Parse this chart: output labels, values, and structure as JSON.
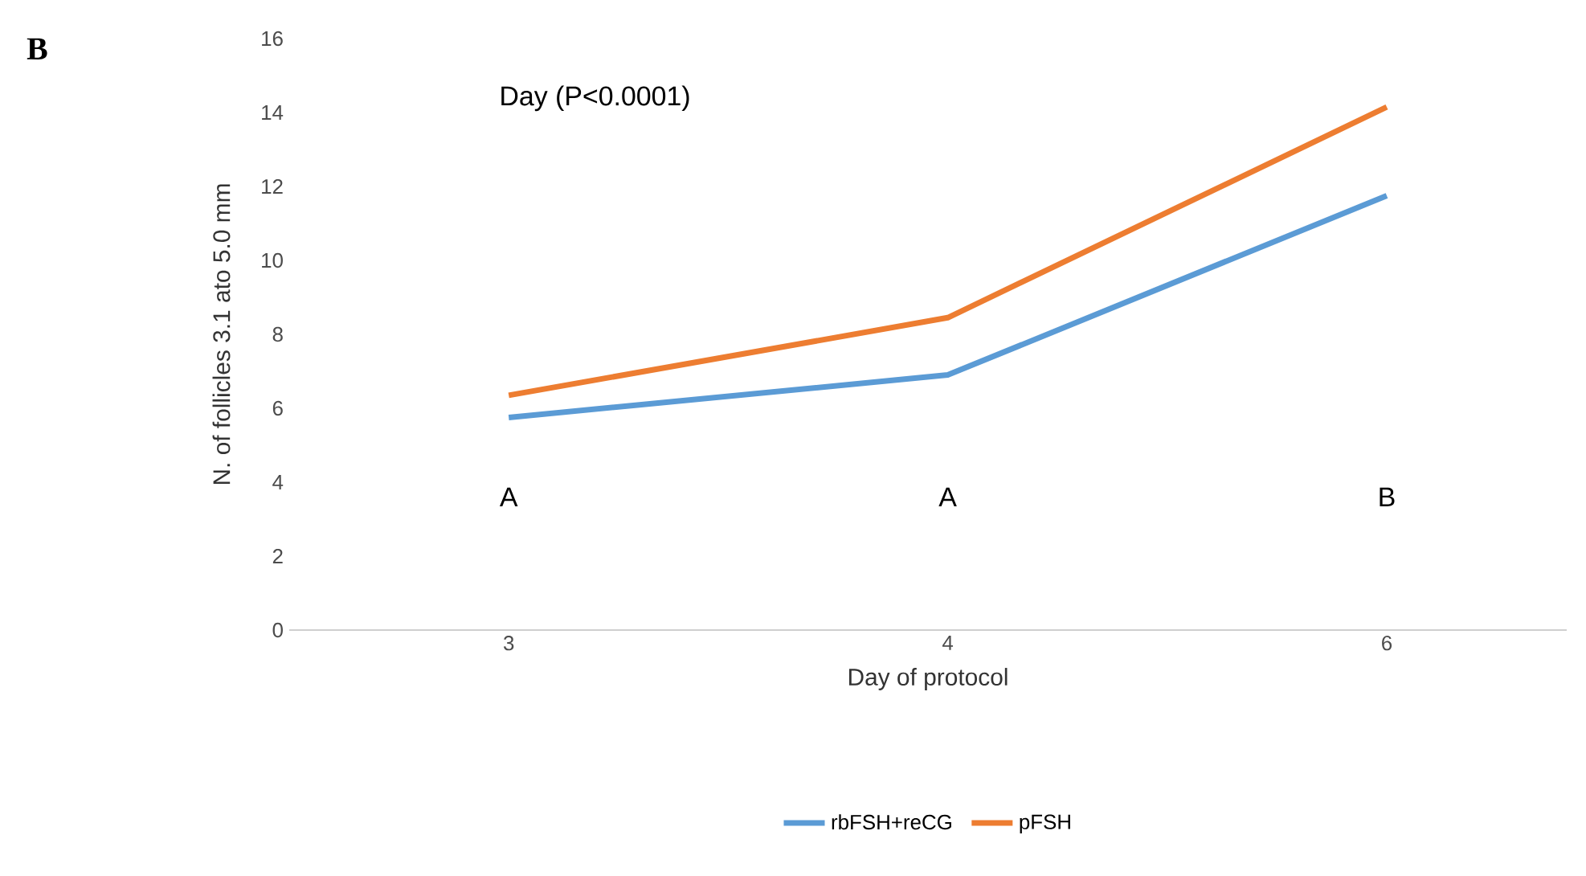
{
  "chart_data": {
    "type": "line",
    "xlabel": "Day of protocol",
    "ylabel": "N. of follicles  3.1 ato 5.0 mm",
    "categories": [
      "3",
      "4",
      "6"
    ],
    "series": [
      {
        "name": "rbFSH+reCG",
        "color": "#5b9bd5",
        "values": [
          5.75,
          6.9,
          11.75
        ]
      },
      {
        "name": "pFSH",
        "color": "#ed7d31",
        "values": [
          6.35,
          8.45,
          14.15
        ]
      }
    ],
    "ylim": [
      0,
      16
    ],
    "yticks": [
      0,
      2,
      4,
      6,
      8,
      10,
      12,
      14,
      16
    ],
    "grid": false,
    "legend": "bottom",
    "marker": "none",
    "line_style": "solid",
    "annotations": [
      "B",
      "Day (P<0.0001)",
      "A",
      "A",
      "B"
    ]
  }
}
